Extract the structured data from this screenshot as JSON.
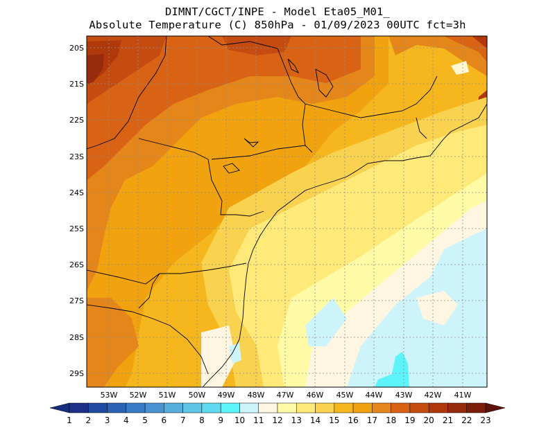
{
  "title_line1": "DIMNT/CGCT/INPE -  Model Eta05_M01_",
  "title_line2": "Absolute Temperature (C) 850hPa -  01/09/2023 00UTC fct=3h",
  "lat_labels": [
    "20S",
    "21S",
    "22S",
    "23S",
    "24S",
    "25S",
    "26S",
    "27S",
    "28S",
    "29S"
  ],
  "lon_labels": [
    "53W",
    "52W",
    "51W",
    "50W",
    "49W",
    "48W",
    "47W",
    "46W",
    "45W",
    "44W",
    "43W",
    "42W",
    "41W"
  ],
  "colorbar": {
    "labels": [
      "1",
      "2",
      "3",
      "4",
      "5",
      "6",
      "7",
      "8",
      "9",
      "10",
      "11",
      "12",
      "13",
      "14",
      "15",
      "16",
      "17",
      "18",
      "19",
      "20",
      "21",
      "22",
      "23"
    ],
    "colors": [
      "#1d2f86",
      "#214ba0",
      "#2b62b4",
      "#3a7bc6",
      "#4a93d2",
      "#56aedc",
      "#5fc5e4",
      "#5fdaee",
      "#5df3fb",
      "#cdf3fb",
      "#fff6e2",
      "#fffaa6",
      "#ffe978",
      "#f9d24f",
      "#f5b71d",
      "#f0a30f",
      "#e5861a",
      "#d86315",
      "#c54c10",
      "#b0390c",
      "#962c0d",
      "#7c1e0c"
    ],
    "low_arrow_color": "#172d7e",
    "high_arrow_color": "#5c1208"
  }
}
